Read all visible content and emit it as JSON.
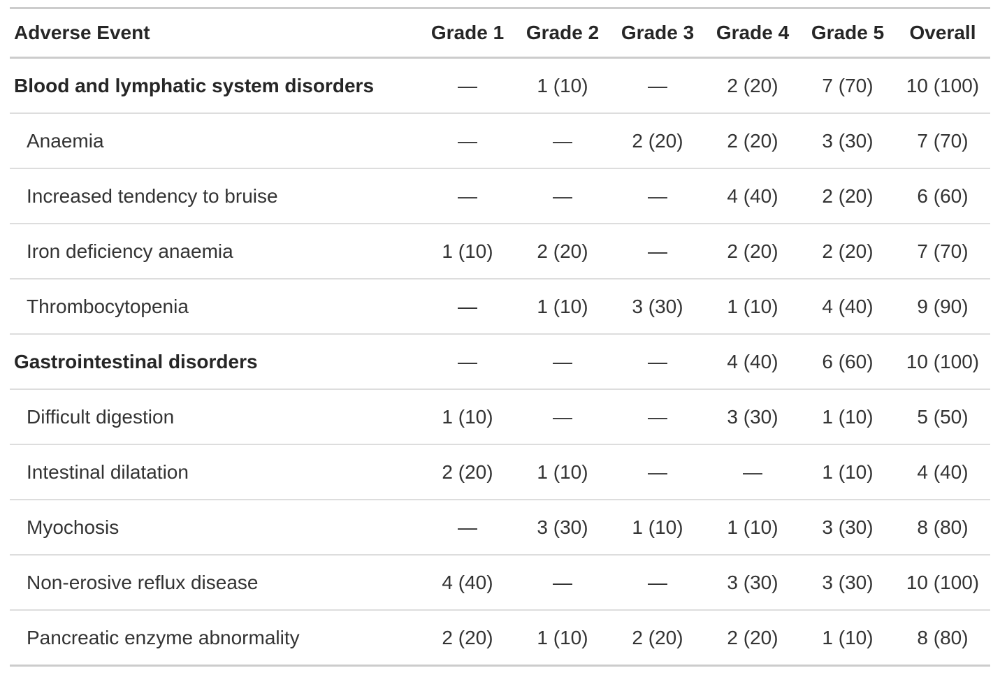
{
  "table": {
    "columns": [
      "Adverse Event",
      "Grade 1",
      "Grade 2",
      "Grade 3",
      "Grade 4",
      "Grade 5",
      "Overall"
    ],
    "rows": [
      {
        "label": "Blood and lymphatic system disorders",
        "type": "group",
        "values": [
          "—",
          "1 (10)",
          "—",
          "2 (20)",
          "7 (70)",
          "10 (100)"
        ]
      },
      {
        "label": "Anaemia",
        "type": "item",
        "values": [
          "—",
          "—",
          "2 (20)",
          "2 (20)",
          "3 (30)",
          "7 (70)"
        ]
      },
      {
        "label": "Increased tendency to bruise",
        "type": "item",
        "values": [
          "—",
          "—",
          "—",
          "4 (40)",
          "2 (20)",
          "6 (60)"
        ]
      },
      {
        "label": "Iron deficiency anaemia",
        "type": "item",
        "values": [
          "1 (10)",
          "2 (20)",
          "—",
          "2 (20)",
          "2 (20)",
          "7 (70)"
        ]
      },
      {
        "label": "Thrombocytopenia",
        "type": "item",
        "values": [
          "—",
          "1 (10)",
          "3 (30)",
          "1 (10)",
          "4 (40)",
          "9 (90)"
        ]
      },
      {
        "label": "Gastrointestinal disorders",
        "type": "group",
        "values": [
          "—",
          "—",
          "—",
          "4 (40)",
          "6 (60)",
          "10 (100)"
        ]
      },
      {
        "label": "Difficult digestion",
        "type": "item",
        "values": [
          "1 (10)",
          "—",
          "—",
          "3 (30)",
          "1 (10)",
          "5 (50)"
        ]
      },
      {
        "label": "Intestinal dilatation",
        "type": "item",
        "values": [
          "2 (20)",
          "1 (10)",
          "—",
          "—",
          "1 (10)",
          "4 (40)"
        ]
      },
      {
        "label": "Myochosis",
        "type": "item",
        "values": [
          "—",
          "3 (30)",
          "1 (10)",
          "1 (10)",
          "3 (30)",
          "8 (80)"
        ]
      },
      {
        "label": "Non-erosive reflux disease",
        "type": "item",
        "values": [
          "4 (40)",
          "—",
          "—",
          "3 (30)",
          "3 (30)",
          "10 (100)"
        ]
      },
      {
        "label": "Pancreatic enzyme abnormality",
        "type": "item",
        "values": [
          "2 (20)",
          "1 (10)",
          "2 (20)",
          "2 (20)",
          "1 (10)",
          "8 (80)"
        ]
      }
    ]
  },
  "colors": {
    "background": "#ffffff",
    "text": "#333333",
    "heading_text": "#262626",
    "border_strong": "#cccccc",
    "border_light": "#dddddd"
  }
}
